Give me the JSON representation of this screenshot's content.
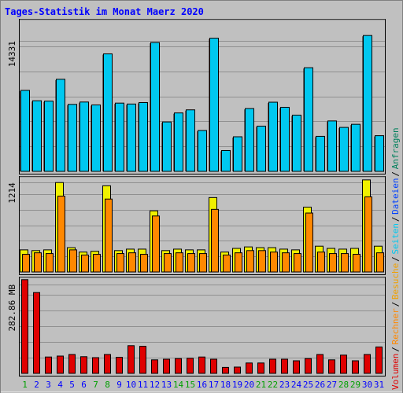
{
  "chart_data": {
    "type": "bar",
    "title": "Tages-Statistik im Monat Maerz 2020",
    "categories": [
      "1",
      "2",
      "3",
      "4",
      "5",
      "6",
      "7",
      "8",
      "9",
      "10",
      "11",
      "12",
      "13",
      "14",
      "15",
      "16",
      "17",
      "18",
      "19",
      "20",
      "21",
      "22",
      "23",
      "24",
      "25",
      "26",
      "27",
      "28",
      "29",
      "30",
      "31"
    ],
    "weekend_days": [
      "1",
      "7",
      "8",
      "14",
      "15",
      "21",
      "22",
      "28",
      "29"
    ],
    "panels": [
      {
        "name": "hits-files",
        "ytick_label": "14331",
        "ytick_value": 14331,
        "ylim": [
          0,
          16500
        ],
        "series": [
          {
            "name": "Anfragen",
            "color": "#00805c",
            "values": [
              8900,
              7760,
              7720,
              10120,
              7360,
              7620,
              7300,
              12910,
              7500,
              7400,
              7560,
              14160,
              5430,
              6420,
              6760,
              4490,
              14640,
              2290,
              3800,
              6900,
              4970,
              7600,
              7040,
              6180,
              11390,
              3850,
              5540,
              4830,
              5170,
              14930,
              3920
            ]
          },
          {
            "name": "Dateien",
            "color": "#00c8f0",
            "values": [
              8900,
              7760,
              7720,
              10120,
              7360,
              7620,
              7300,
              12910,
              7500,
              7400,
              7560,
              14160,
              5430,
              6420,
              6760,
              4490,
              14640,
              2290,
              3800,
              6900,
              4970,
              7600,
              7040,
              6180,
              11390,
              3850,
              5540,
              4830,
              5170,
              14930,
              3920
            ]
          }
        ]
      },
      {
        "name": "pages-visits",
        "ytick_label": "1214",
        "ytick_value": 1214,
        "ylim": [
          0,
          1270
        ],
        "series": [
          {
            "name": "Seiten",
            "color": "#f0f000",
            "values": [
              300,
              290,
              300,
              1214,
              330,
              270,
              280,
              1170,
              290,
              310,
              310,
              830,
              290,
              310,
              300,
              300,
              1010,
              270,
              320,
              340,
              330,
              330,
              310,
              300,
              880,
              350,
              320,
              310,
              320,
              1250,
              350
            ]
          },
          {
            "name": "Besuche",
            "color": "#ff8800",
            "values": [
              240,
              260,
              250,
              1030,
              300,
              230,
              240,
              990,
              250,
              260,
              240,
              760,
              250,
              260,
              250,
              250,
              850,
              230,
              260,
              290,
              290,
              270,
              260,
              250,
              800,
              270,
              250,
              250,
              240,
              1020,
              260
            ]
          }
        ]
      },
      {
        "name": "volume",
        "ytick_label": "282.86 MB",
        "ytick_value": 282.86,
        "ylim": [
          0,
          300
        ],
        "series": [
          {
            "name": "Rechner",
            "color": "#ff8800",
            "values": []
          },
          {
            "name": "Volumen",
            "color": "#e00000",
            "values": [
              298,
              257,
              52,
              55,
              60,
              53,
              50,
              60,
              51,
              88,
              86,
              43,
              45,
              47,
              48,
              52,
              45,
              19,
              20,
              33,
              33,
              45,
              45,
              40,
              47,
              60,
              43,
              58,
              40,
              60,
              84
            ]
          }
        ]
      }
    ],
    "axis_labels_right": [
      {
        "text": "Volumen",
        "color": "#e00000"
      },
      {
        "text": "Rechner",
        "color": "#ff8800"
      },
      {
        "text": "Besuche",
        "color": "#f0a000"
      },
      {
        "text": "Seiten",
        "color": "#00c8f0"
      },
      {
        "text": "Dateien",
        "color": "#0040ff"
      },
      {
        "text": "Anfragen",
        "color": "#00805c"
      }
    ],
    "colors": {
      "title": "#0000ff",
      "day_label": "#0000ff",
      "weekend_label": "#00a000",
      "background": "#c0c0c0",
      "panel_bg": "#c0c0c0",
      "grid": "#909090"
    }
  }
}
